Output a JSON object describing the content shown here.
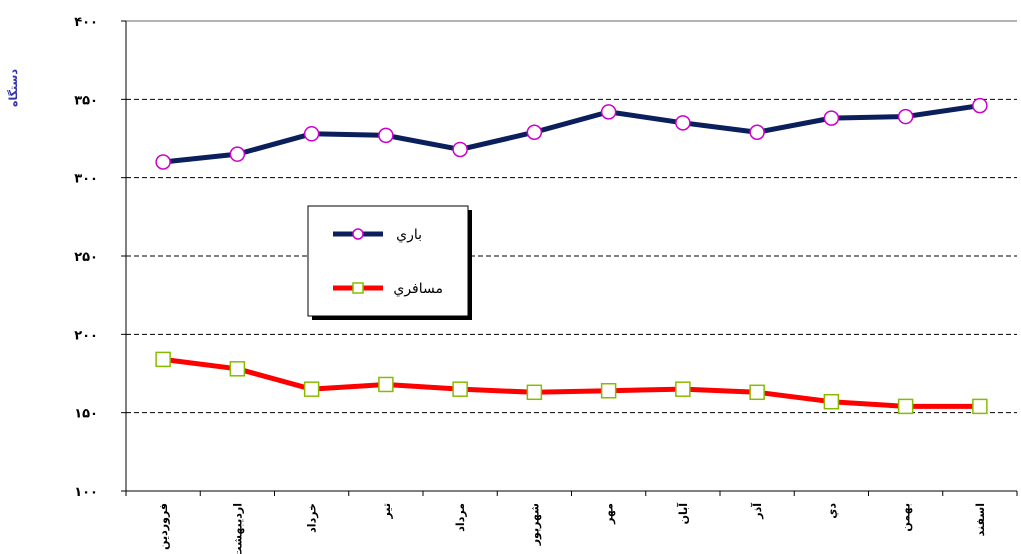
{
  "chart_data": {
    "type": "line",
    "ylabel": "دستگاه",
    "xlabel": "",
    "ylim": [
      100,
      400
    ],
    "yticks": [
      100,
      150,
      200,
      250,
      300,
      350,
      400
    ],
    "ytick_labels": [
      "۱۰۰",
      "۱۵۰",
      "۲۰۰",
      "۲۵۰",
      "۳۰۰",
      "۳۵۰",
      "۴۰۰"
    ],
    "grid": true,
    "legend_position": "center-left",
    "categories": [
      "فروردين",
      "ارديبهشت",
      "خرداد",
      "تير",
      "مرداد",
      "شهريور",
      "مهر",
      "آبان",
      "آذر",
      "دي",
      "بهمن",
      "اسفند"
    ],
    "series": [
      {
        "name": "باري",
        "values": [
          310,
          315,
          328,
          327,
          318,
          329,
          342,
          335,
          329,
          338,
          339,
          346
        ],
        "line_color": "#0a1f5c",
        "marker": "circle",
        "marker_edge": "#cc00cc"
      },
      {
        "name": "مسافري",
        "values": [
          184,
          178,
          165,
          168,
          165,
          163,
          164,
          165,
          163,
          157,
          154,
          154
        ],
        "line_color": "#ff0000",
        "marker": "square",
        "marker_edge": "#88bb00"
      }
    ],
    "ylabel_color": "#3333aa"
  }
}
